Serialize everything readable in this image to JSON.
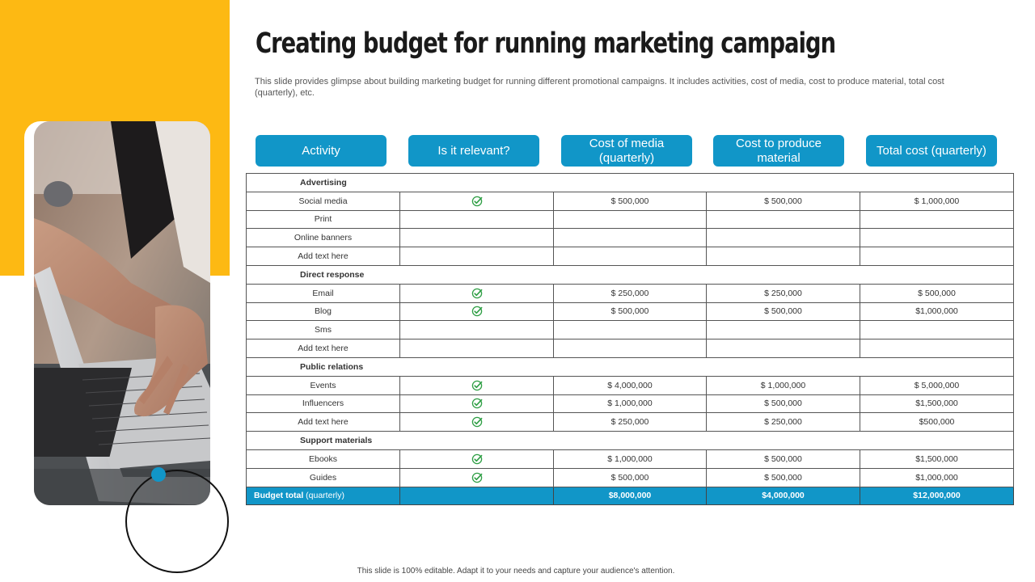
{
  "slide": {
    "title": "Creating budget for running marketing campaign",
    "subtitle": "This slide provides glimpse about building marketing budget for running different promotional campaigns. It includes activities, cost of media, cost to produce material, total cost (quarterly), etc.",
    "footer": "This slide is 100% editable. Adapt it to your needs and capture your audience's attention."
  },
  "colors": {
    "accent_blue": "#1196C8",
    "accent_yellow": "#FDB913",
    "check_green": "#2E9E44"
  },
  "table": {
    "headers": [
      "Activity",
      "Is it relevant?",
      "Cost of media (quarterly)",
      "Cost to produce material",
      "Total cost (quarterly)"
    ],
    "sections": [
      {
        "name": "Advertising",
        "rows": [
          {
            "activity": "Social media",
            "relevant": true,
            "media": "$ 500,000",
            "produce": "$ 500,000",
            "total": "$ 1,000,000"
          },
          {
            "activity": "Print",
            "relevant": false,
            "media": "",
            "produce": "",
            "total": ""
          },
          {
            "activity": "Online banners",
            "relevant": false,
            "media": "",
            "produce": "",
            "total": ""
          },
          {
            "activity": "Add text here",
            "relevant": false,
            "media": "",
            "produce": "",
            "total": ""
          }
        ]
      },
      {
        "name": "Direct response",
        "rows": [
          {
            "activity": "Email",
            "relevant": true,
            "media": "$ 250,000",
            "produce": "$ 250,000",
            "total": "$ 500,000"
          },
          {
            "activity": "Blog",
            "relevant": true,
            "media": "$ 500,000",
            "produce": "$ 500,000",
            "total": "$1,000,000"
          },
          {
            "activity": "Sms",
            "relevant": false,
            "media": "",
            "produce": "",
            "total": ""
          },
          {
            "activity": "Add text here",
            "relevant": false,
            "media": "",
            "produce": "",
            "total": ""
          }
        ]
      },
      {
        "name": "Public relations",
        "rows": [
          {
            "activity": "Events",
            "relevant": true,
            "media": "$ 4,000,000",
            "produce": "$ 1,000,000",
            "total": "$ 5,000,000"
          },
          {
            "activity": "Influencers",
            "relevant": true,
            "media": "$ 1,000,000",
            "produce": "$ 500,000",
            "total": "$1,500,000"
          },
          {
            "activity": "Add text here",
            "relevant": true,
            "media": "$ 250,000",
            "produce": "$ 250,000",
            "total": "$500,000"
          }
        ]
      },
      {
        "name": "Support materials",
        "rows": [
          {
            "activity": "Ebooks",
            "relevant": true,
            "media": "$ 1,000,000",
            "produce": "$ 500,000",
            "total": "$1,500,000"
          },
          {
            "activity": "Guides",
            "relevant": true,
            "media": "$ 500,000",
            "produce": "$ 500,000",
            "total": "$1,000,000"
          }
        ]
      }
    ],
    "total": {
      "label": "Budget total",
      "label_qualifier": "(quarterly)",
      "media": "$8,000,000",
      "produce": "$4,000,000",
      "total": "$12,000,000"
    }
  }
}
